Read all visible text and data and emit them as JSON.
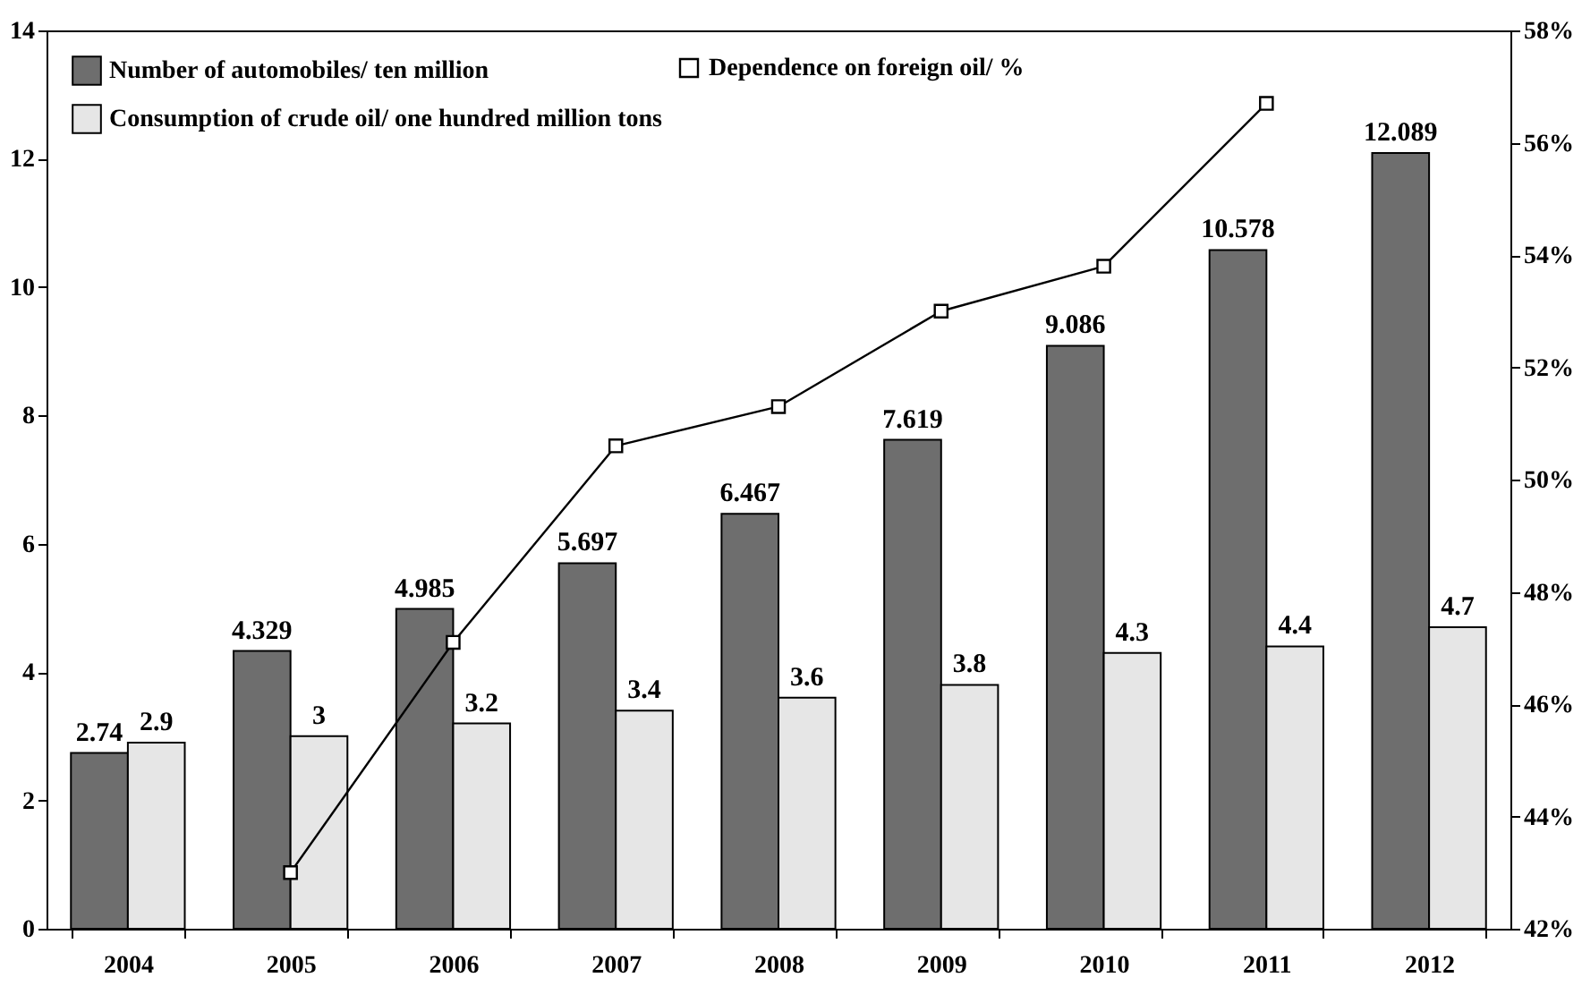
{
  "chart_data": {
    "type": "bar",
    "categories": [
      "2004",
      "2005",
      "2006",
      "2007",
      "2008",
      "2009",
      "2010",
      "2011",
      "2012"
    ],
    "series": [
      {
        "name": "Number of automobiles/ ten million",
        "color": "#6e6e6e",
        "values": [
          2.74,
          4.329,
          4.985,
          5.697,
          6.467,
          7.619,
          9.086,
          10.578,
          12.089
        ],
        "value_labels": [
          "2.74",
          "4.329",
          "4.985",
          "5.697",
          "6.467",
          "7.619",
          "9.086",
          "10.578",
          "12.089"
        ]
      },
      {
        "name": "Consumption of crude oil/ one hundred million tons",
        "color": "#e6e6e6",
        "values": [
          2.9,
          3,
          3.2,
          3.4,
          3.6,
          3.8,
          4.3,
          4.4,
          4.7
        ],
        "value_labels": [
          "2.9",
          "3",
          "3.2",
          "3.4",
          "3.6",
          "3.8",
          "4.3",
          "4.4",
          "4.7"
        ]
      },
      {
        "name": "Dependence on foreign oil/ %",
        "type": "line",
        "axis": "y2",
        "color": "#000000",
        "values": [
          null,
          43.0,
          47.1,
          50.6,
          51.3,
          53.0,
          53.8,
          56.7,
          null
        ]
      }
    ],
    "ylim": [
      0,
      14
    ],
    "yticks": [
      0,
      2,
      4,
      6,
      8,
      10,
      12,
      14
    ],
    "y2lim": [
      42,
      58
    ],
    "y2ticks": [
      {
        "value": 42,
        "label": "42%"
      },
      {
        "value": 44,
        "label": "44%"
      },
      {
        "value": 46,
        "label": "46%"
      },
      {
        "value": 48,
        "label": "48%"
      },
      {
        "value": 50,
        "label": "50%"
      },
      {
        "value": 52,
        "label": "52%"
      },
      {
        "value": 54,
        "label": "54%"
      },
      {
        "value": 56,
        "label": "56%"
      },
      {
        "value": 58,
        "label": "58%"
      }
    ],
    "legend": "top left",
    "marker": "square",
    "grid": false
  }
}
